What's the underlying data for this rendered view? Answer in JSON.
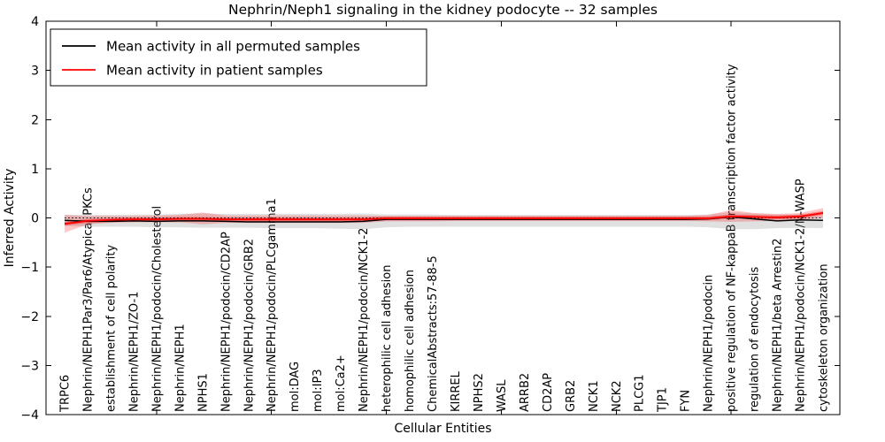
{
  "chart_data": {
    "type": "line",
    "title": "Nephrin/Neph1 signaling in the kidney podocyte -- 32 samples",
    "xlabel": "Cellular Entities",
    "ylabel": "Inferred Activity",
    "ylim": [
      -4,
      4
    ],
    "ytick_values": [
      -4,
      -3,
      -2,
      -1,
      0,
      1,
      2,
      3,
      4
    ],
    "ytick_labels": [
      "−4",
      "−3",
      "−2",
      "−1",
      "0",
      "1",
      "2",
      "3",
      "4"
    ],
    "xtick_major_indices": [
      4,
      9,
      14,
      19,
      24,
      29
    ],
    "grid": false,
    "legend_position": "upper-left",
    "zero_reference_line": true,
    "categories": [
      "TRPC6",
      "Nephrin/NEPH1Par3/Par6/Atypical PKCs",
      "establishment of cell polarity",
      "Nephrin/NEPH1/ZO-1",
      "Nephrin/NEPH1/podocin/Cholesterol",
      "Nephrin/NEPH1",
      "NPHS1",
      "Nephrin/NEPH1/podocin/CD2AP",
      "Nephrin/NEPH1/podocin/GRB2",
      "Nephrin/NEPH1/podocin/PLCgamma1",
      "mol:DAG",
      "mol:IP3",
      "mol:Ca2+",
      "Nephrin/NEPH1/podocin/NCK1-2",
      "heterophilic cell adhesion",
      "homophilic cell adhesion",
      "ChemicalAbstracts:57-88-5",
      "KIRREL",
      "NPHS2",
      "WASL",
      "ARRB2",
      "CD2AP",
      "GRB2",
      "NCK1",
      "NCK2",
      "PLCG1",
      "TJP1",
      "FYN",
      "Nephrin/NEPH1/podocin",
      "positive regulation of NF-kappaB transcription factor activity",
      "regulation of endocytosis",
      "Nephrin/NEPH1/beta Arrestin2",
      "Nephrin/NEPH1/podocin/NCK1-2/N-WASP",
      "cytoskeleton organization"
    ],
    "series": [
      {
        "name": "Mean activity in all permuted samples",
        "color": "#000000",
        "width": 1.5,
        "values": [
          -0.05,
          -0.07,
          -0.07,
          -0.06,
          -0.07,
          -0.06,
          -0.06,
          -0.07,
          -0.08,
          -0.08,
          -0.08,
          -0.08,
          -0.08,
          -0.07,
          -0.03,
          -0.03,
          -0.03,
          -0.03,
          -0.03,
          -0.03,
          -0.03,
          -0.03,
          -0.03,
          -0.03,
          -0.03,
          -0.03,
          -0.03,
          -0.03,
          -0.02,
          0.02,
          -0.02,
          -0.06,
          -0.04,
          -0.05
        ]
      },
      {
        "name": "Mean activity in patient samples",
        "color": "#ff0000",
        "width": 1.8,
        "values": [
          -0.12,
          -0.06,
          -0.04,
          -0.03,
          -0.03,
          -0.02,
          -0.02,
          -0.03,
          -0.03,
          -0.03,
          -0.03,
          -0.03,
          -0.03,
          -0.03,
          -0.01,
          -0.01,
          -0.01,
          -0.01,
          -0.01,
          -0.01,
          -0.01,
          -0.01,
          -0.01,
          -0.01,
          -0.01,
          -0.01,
          -0.01,
          -0.01,
          -0.01,
          0.03,
          0.02,
          0.01,
          0.03,
          0.1
        ]
      }
    ],
    "bands": [
      {
        "name": "permuted-samples-range",
        "color": "#999999",
        "opacity": 0.3,
        "upper": [
          0.06,
          0.06,
          0.06,
          0.07,
          0.07,
          0.08,
          0.09,
          0.08,
          0.08,
          0.08,
          0.08,
          0.08,
          0.08,
          0.09,
          0.07,
          0.07,
          0.07,
          0.06,
          0.06,
          0.06,
          0.06,
          0.06,
          0.06,
          0.06,
          0.06,
          0.06,
          0.06,
          0.06,
          0.07,
          0.12,
          0.09,
          0.07,
          0.07,
          0.05
        ],
        "lower": [
          -0.16,
          -0.18,
          -0.18,
          -0.18,
          -0.19,
          -0.19,
          -0.2,
          -0.2,
          -0.2,
          -0.21,
          -0.21,
          -0.21,
          -0.22,
          -0.23,
          -0.19,
          -0.18,
          -0.18,
          -0.18,
          -0.18,
          -0.18,
          -0.18,
          -0.18,
          -0.18,
          -0.18,
          -0.18,
          -0.18,
          -0.18,
          -0.18,
          -0.19,
          -0.23,
          -0.23,
          -0.21,
          -0.2,
          -0.21
        ]
      },
      {
        "name": "patient-samples-outer-band",
        "color": "#ff0000",
        "opacity": 0.22,
        "upper": [
          0.06,
          0.04,
          0.04,
          0.04,
          0.05,
          0.06,
          0.11,
          0.05,
          0.05,
          0.05,
          0.05,
          0.05,
          0.05,
          0.05,
          0.04,
          0.04,
          0.04,
          0.04,
          0.04,
          0.04,
          0.04,
          0.04,
          0.04,
          0.04,
          0.04,
          0.04,
          0.04,
          0.04,
          0.06,
          0.16,
          0.1,
          0.08,
          0.1,
          0.2
        ],
        "lower": [
          -0.3,
          -0.13,
          -0.1,
          -0.09,
          -0.09,
          -0.09,
          -0.13,
          -0.1,
          -0.1,
          -0.1,
          -0.1,
          -0.1,
          -0.1,
          -0.1,
          -0.07,
          -0.07,
          -0.07,
          -0.06,
          -0.06,
          -0.06,
          -0.06,
          -0.06,
          -0.06,
          -0.06,
          -0.06,
          -0.06,
          -0.06,
          -0.06,
          -0.07,
          -0.08,
          -0.07,
          -0.06,
          -0.05,
          0.0
        ]
      },
      {
        "name": "patient-samples-inner-band",
        "color": "#ff0000",
        "opacity": 0.32,
        "upper": [
          -0.08,
          -0.02,
          0.0,
          0.01,
          0.01,
          0.02,
          0.02,
          0.01,
          0.01,
          0.01,
          0.01,
          0.01,
          0.01,
          0.01,
          0.03,
          0.03,
          0.03,
          0.03,
          0.03,
          0.03,
          0.03,
          0.03,
          0.03,
          0.03,
          0.03,
          0.03,
          0.03,
          0.03,
          0.03,
          0.07,
          0.06,
          0.05,
          0.07,
          0.14
        ],
        "lower": [
          -0.16,
          -0.1,
          -0.08,
          -0.07,
          -0.07,
          -0.06,
          -0.06,
          -0.07,
          -0.07,
          -0.07,
          -0.07,
          -0.07,
          -0.07,
          -0.07,
          -0.05,
          -0.05,
          -0.05,
          -0.05,
          -0.05,
          -0.05,
          -0.05,
          -0.05,
          -0.05,
          -0.05,
          -0.05,
          -0.05,
          -0.05,
          -0.05,
          -0.05,
          -0.01,
          -0.02,
          -0.03,
          -0.01,
          0.06
        ]
      }
    ],
    "colors": {
      "axis": "#000000",
      "zero_line": "#000000",
      "background": "#ffffff"
    }
  }
}
